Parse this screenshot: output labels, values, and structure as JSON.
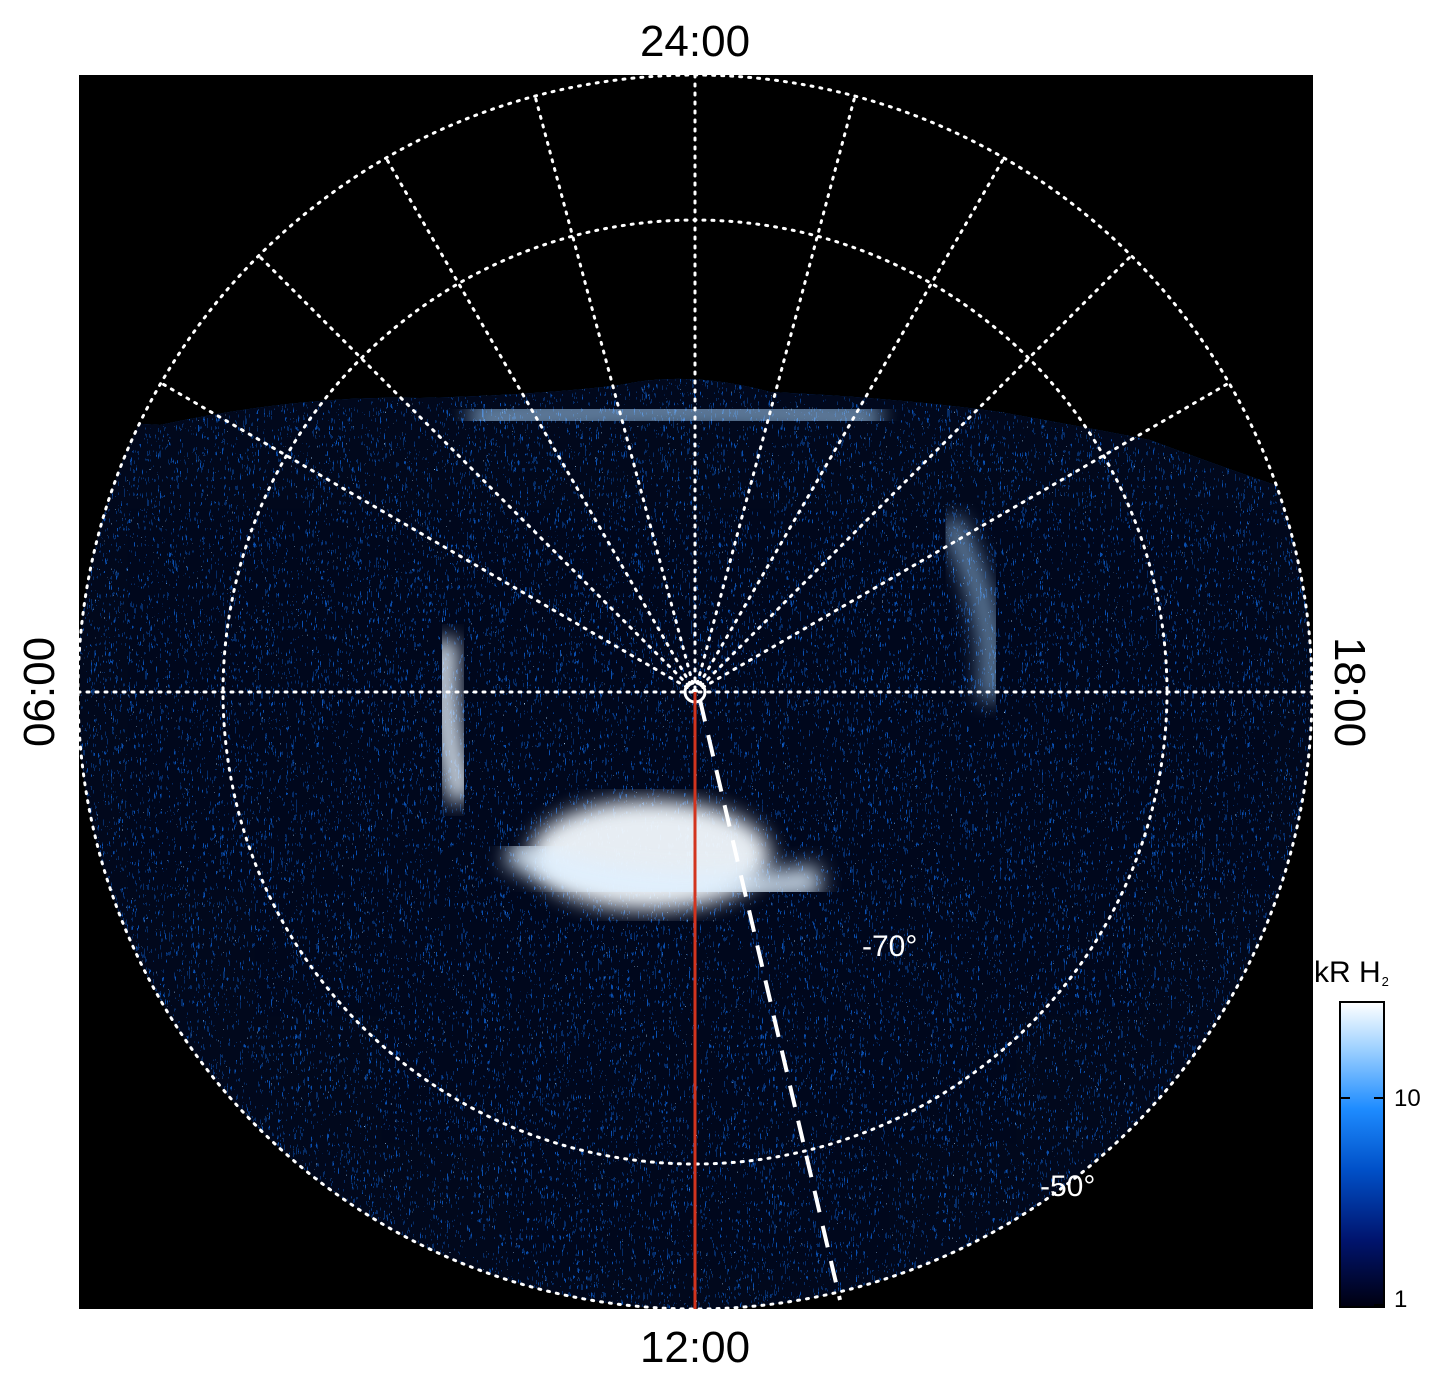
{
  "time_labels": {
    "top": "24:00",
    "bottom": "12:00",
    "left": "06:00",
    "right": "18:00"
  },
  "latitude_labels": [
    "-70°",
    "-50°"
  ],
  "colorbar": {
    "title": "kR H",
    "title_subscript": "2",
    "ticks": [
      "10",
      "1"
    ],
    "scale": "log",
    "colors": [
      "#000010",
      "#00146e",
      "#0050c8",
      "#1e8cff",
      "#a0d2ff",
      "#ffffff"
    ]
  },
  "overlay_colors": {
    "background": "#000000",
    "grid": "#ffffff",
    "meridian_line": "#d2341e"
  }
}
